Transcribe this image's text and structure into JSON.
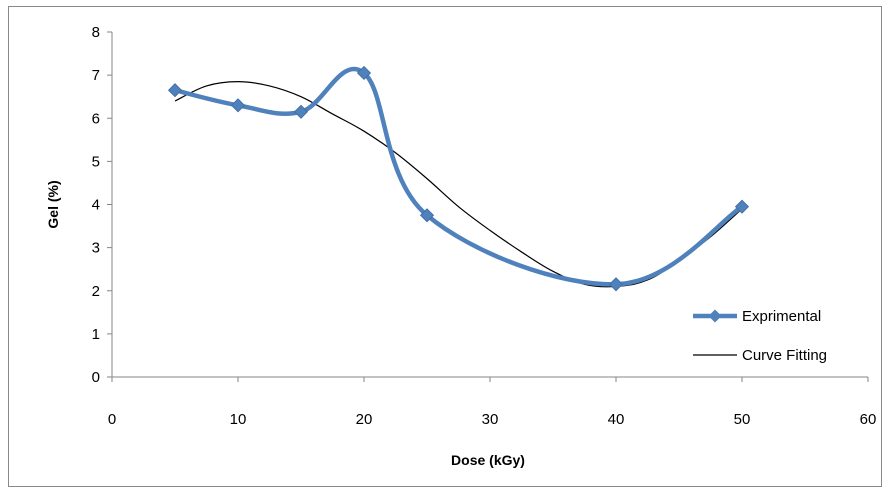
{
  "chart_data": {
    "type": "line",
    "xlabel": "Dose (kGy)",
    "ylabel": "Gel (%)",
    "xlim": [
      0,
      60
    ],
    "ylim": [
      0,
      8
    ],
    "xticks": [
      "0",
      "10",
      "20",
      "30",
      "40",
      "50",
      "60"
    ],
    "yticks": [
      "0",
      "1",
      "2",
      "3",
      "4",
      "5",
      "6",
      "7",
      "8"
    ],
    "grid": false,
    "legend_position": "right",
    "series": [
      {
        "name": "Exprimental",
        "style": "smoothed line with diamond markers",
        "color": "#4F81BD",
        "x": [
          5,
          10,
          15,
          20,
          25,
          40,
          50
        ],
        "y": [
          6.65,
          6.3,
          6.15,
          7.05,
          3.75,
          2.15,
          3.95
        ]
      },
      {
        "name": "Curve Fitting",
        "style": "thin line",
        "color": "#000000",
        "x": [
          5,
          7.5,
          10,
          12.5,
          15,
          17.5,
          20,
          22.5,
          25,
          27.5,
          30,
          32.5,
          35,
          37.5,
          40,
          42.5,
          45,
          47.5,
          50
        ],
        "y": [
          6.4,
          6.75,
          6.85,
          6.75,
          6.5,
          6.1,
          5.7,
          5.2,
          4.6,
          3.95,
          3.4,
          2.9,
          2.45,
          2.15,
          2.1,
          2.25,
          2.7,
          3.25,
          3.9
        ]
      }
    ]
  }
}
